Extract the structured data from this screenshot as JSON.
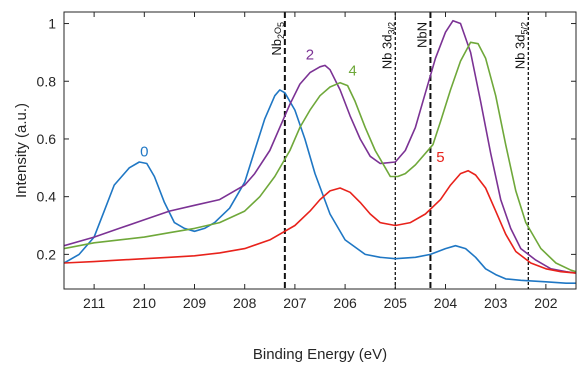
{
  "chart_data": {
    "type": "line",
    "title": "",
    "xlabel": "Binding Energy (eV)",
    "ylabel": "Intensity (a.u.)",
    "xlim": [
      211.6,
      201.4
    ],
    "ylim": [
      0.08,
      1.04
    ],
    "x_reversed": true,
    "grid": false,
    "xticks": [
      211,
      210,
      209,
      208,
      207,
      206,
      205,
      204,
      203,
      202
    ],
    "yticks": [
      0.2,
      0.4,
      0.6,
      0.8,
      1
    ],
    "ytick_labels": [
      "0.2",
      "0.4",
      "0.6",
      "0.8",
      "1"
    ],
    "series": [
      {
        "name": "0",
        "color": "#1f77c4",
        "label_at": [
          210.0,
          0.54
        ],
        "points": [
          [
            211.6,
            0.17
          ],
          [
            211.3,
            0.2
          ],
          [
            211.0,
            0.26
          ],
          [
            210.8,
            0.35
          ],
          [
            210.6,
            0.44
          ],
          [
            210.3,
            0.5
          ],
          [
            210.1,
            0.52
          ],
          [
            209.95,
            0.515
          ],
          [
            209.8,
            0.47
          ],
          [
            209.6,
            0.38
          ],
          [
            209.4,
            0.31
          ],
          [
            209.2,
            0.29
          ],
          [
            209.0,
            0.28
          ],
          [
            208.8,
            0.29
          ],
          [
            208.6,
            0.31
          ],
          [
            208.3,
            0.36
          ],
          [
            208.0,
            0.45
          ],
          [
            207.8,
            0.56
          ],
          [
            207.6,
            0.67
          ],
          [
            207.4,
            0.75
          ],
          [
            207.3,
            0.77
          ],
          [
            207.2,
            0.76
          ],
          [
            207.0,
            0.7
          ],
          [
            206.8,
            0.6
          ],
          [
            206.6,
            0.48
          ],
          [
            206.3,
            0.34
          ],
          [
            206.0,
            0.25
          ],
          [
            205.6,
            0.2
          ],
          [
            205.3,
            0.19
          ],
          [
            205.0,
            0.185
          ],
          [
            204.6,
            0.19
          ],
          [
            204.3,
            0.2
          ],
          [
            204.0,
            0.22
          ],
          [
            203.8,
            0.23
          ],
          [
            203.6,
            0.22
          ],
          [
            203.4,
            0.19
          ],
          [
            203.2,
            0.15
          ],
          [
            203.0,
            0.13
          ],
          [
            202.8,
            0.115
          ],
          [
            202.5,
            0.11
          ],
          [
            202.0,
            0.105
          ],
          [
            201.6,
            0.1
          ],
          [
            201.4,
            0.1
          ]
        ]
      },
      {
        "name": "2",
        "color": "#7b3294",
        "label_at": [
          206.7,
          0.875
        ],
        "points": [
          [
            211.6,
            0.23
          ],
          [
            211.0,
            0.26
          ],
          [
            210.5,
            0.29
          ],
          [
            210.0,
            0.32
          ],
          [
            209.5,
            0.35
          ],
          [
            209.0,
            0.37
          ],
          [
            208.5,
            0.39
          ],
          [
            208.0,
            0.44
          ],
          [
            207.8,
            0.48
          ],
          [
            207.5,
            0.56
          ],
          [
            207.3,
            0.64
          ],
          [
            207.1,
            0.72
          ],
          [
            206.9,
            0.79
          ],
          [
            206.7,
            0.83
          ],
          [
            206.5,
            0.85
          ],
          [
            206.4,
            0.855
          ],
          [
            206.3,
            0.84
          ],
          [
            206.1,
            0.77
          ],
          [
            205.9,
            0.68
          ],
          [
            205.7,
            0.6
          ],
          [
            205.5,
            0.54
          ],
          [
            205.3,
            0.515
          ],
          [
            205.0,
            0.52
          ],
          [
            204.8,
            0.56
          ],
          [
            204.6,
            0.64
          ],
          [
            204.4,
            0.76
          ],
          [
            204.2,
            0.88
          ],
          [
            204.0,
            0.97
          ],
          [
            203.85,
            1.01
          ],
          [
            203.7,
            1.0
          ],
          [
            203.5,
            0.9
          ],
          [
            203.3,
            0.73
          ],
          [
            203.1,
            0.55
          ],
          [
            202.9,
            0.39
          ],
          [
            202.7,
            0.29
          ],
          [
            202.5,
            0.22
          ],
          [
            202.2,
            0.18
          ],
          [
            201.9,
            0.15
          ],
          [
            201.6,
            0.14
          ],
          [
            201.4,
            0.135
          ]
        ]
      },
      {
        "name": "4",
        "color": "#6fa83a",
        "label_at": [
          205.85,
          0.82
        ],
        "points": [
          [
            211.6,
            0.22
          ],
          [
            211.0,
            0.24
          ],
          [
            210.5,
            0.25
          ],
          [
            210.0,
            0.26
          ],
          [
            209.5,
            0.275
          ],
          [
            209.0,
            0.29
          ],
          [
            208.5,
            0.31
          ],
          [
            208.0,
            0.35
          ],
          [
            207.7,
            0.4
          ],
          [
            207.4,
            0.47
          ],
          [
            207.1,
            0.56
          ],
          [
            206.9,
            0.64
          ],
          [
            206.7,
            0.7
          ],
          [
            206.5,
            0.75
          ],
          [
            206.3,
            0.78
          ],
          [
            206.1,
            0.795
          ],
          [
            205.95,
            0.785
          ],
          [
            205.8,
            0.73
          ],
          [
            205.6,
            0.64
          ],
          [
            205.4,
            0.56
          ],
          [
            205.2,
            0.5
          ],
          [
            205.1,
            0.47
          ],
          [
            204.95,
            0.47
          ],
          [
            204.8,
            0.48
          ],
          [
            204.6,
            0.51
          ],
          [
            204.25,
            0.58
          ],
          [
            204.1,
            0.66
          ],
          [
            203.9,
            0.77
          ],
          [
            203.7,
            0.87
          ],
          [
            203.5,
            0.935
          ],
          [
            203.35,
            0.93
          ],
          [
            203.2,
            0.88
          ],
          [
            203.0,
            0.75
          ],
          [
            202.8,
            0.58
          ],
          [
            202.6,
            0.42
          ],
          [
            202.4,
            0.31
          ],
          [
            202.1,
            0.22
          ],
          [
            201.8,
            0.17
          ],
          [
            201.5,
            0.145
          ],
          [
            201.4,
            0.14
          ]
        ]
      },
      {
        "name": "5",
        "color": "#e8221b",
        "label_at": [
          204.1,
          0.52
        ],
        "points": [
          [
            211.6,
            0.17
          ],
          [
            211.0,
            0.175
          ],
          [
            210.5,
            0.18
          ],
          [
            210.0,
            0.185
          ],
          [
            209.5,
            0.19
          ],
          [
            209.0,
            0.195
          ],
          [
            208.5,
            0.205
          ],
          [
            208.0,
            0.22
          ],
          [
            207.5,
            0.25
          ],
          [
            207.0,
            0.3
          ],
          [
            206.7,
            0.35
          ],
          [
            206.5,
            0.39
          ],
          [
            206.3,
            0.42
          ],
          [
            206.1,
            0.43
          ],
          [
            205.9,
            0.415
          ],
          [
            205.7,
            0.38
          ],
          [
            205.5,
            0.34
          ],
          [
            205.3,
            0.31
          ],
          [
            205.0,
            0.3
          ],
          [
            204.7,
            0.31
          ],
          [
            204.4,
            0.34
          ],
          [
            204.1,
            0.39
          ],
          [
            203.9,
            0.44
          ],
          [
            203.7,
            0.48
          ],
          [
            203.55,
            0.49
          ],
          [
            203.4,
            0.475
          ],
          [
            203.2,
            0.43
          ],
          [
            203.0,
            0.35
          ],
          [
            202.8,
            0.27
          ],
          [
            202.6,
            0.21
          ],
          [
            202.3,
            0.17
          ],
          [
            202.0,
            0.15
          ],
          [
            201.7,
            0.14
          ],
          [
            201.4,
            0.135
          ]
        ]
      }
    ],
    "reference_lines": [
      {
        "label": "Nb2O5",
        "x": 207.2,
        "style": "dashed"
      },
      {
        "label": "Nb 3d3/2",
        "x": 205.0,
        "style": "dotted"
      },
      {
        "label": "NbN",
        "x": 204.3,
        "style": "dashed"
      },
      {
        "label": "Nb 3d5/2",
        "x": 202.35,
        "style": "dotted"
      }
    ]
  }
}
